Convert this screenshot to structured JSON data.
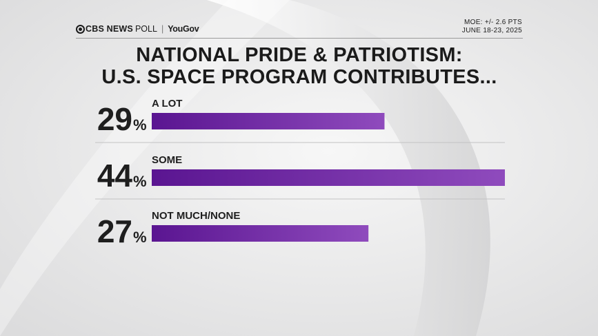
{
  "header": {
    "brand": "CBS NEWS",
    "poll": "POLL",
    "partner": "YouGov",
    "moe": "MOE: +/- 2.6 PTS",
    "dates": "JUNE 18-23, 2025"
  },
  "title_lines": [
    "NATIONAL PRIDE & PATRIOTISM:",
    "U.S. SPACE PROGRAM CONTRIBUTES..."
  ],
  "colors": {
    "bar_start": "#5a1591",
    "bar_end": "#8f4bbd",
    "text": "#1e1e1e"
  },
  "chart_data": {
    "type": "bar",
    "orientation": "horizontal",
    "title": "NATIONAL PRIDE & PATRIOTISM: U.S. SPACE PROGRAM CONTRIBUTES...",
    "categories": [
      "A LOT",
      "SOME",
      "NOT MUCH/NONE"
    ],
    "values": [
      29,
      44,
      27
    ],
    "value_suffix": "%",
    "xlim": [
      0,
      44
    ],
    "grid": false,
    "legend": "none"
  }
}
